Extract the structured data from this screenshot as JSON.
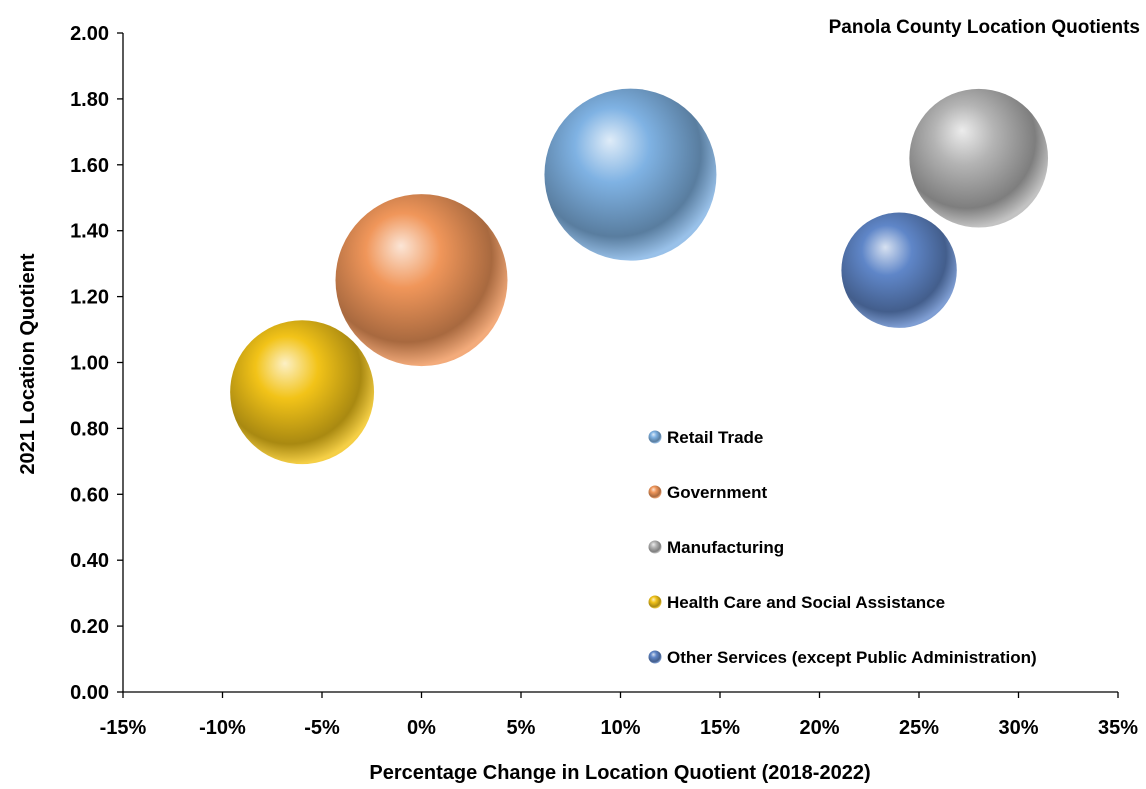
{
  "chart_data": {
    "type": "bubble",
    "title": "Panola County Location Quotients",
    "xlabel": "Percentage Change in Location Quotient (2018-2022)",
    "ylabel": "2021 Location Quotient",
    "xlim": [
      -15,
      35
    ],
    "ylim": [
      0,
      2
    ],
    "x_ticks": [
      "-15%",
      "-10%",
      "-5%",
      "0%",
      "5%",
      "10%",
      "15%",
      "20%",
      "25%",
      "30%",
      "35%"
    ],
    "y_ticks": [
      "0.00",
      "0.20",
      "0.40",
      "0.60",
      "0.80",
      "1.00",
      "1.20",
      "1.40",
      "1.60",
      "1.80",
      "2.00"
    ],
    "legend_position": "right-bottom inside plot",
    "series": [
      {
        "name": "Retail Trade",
        "x": 10.5,
        "y": 1.57,
        "size": 1.0,
        "color": "#7fb2e3"
      },
      {
        "name": "Government",
        "x": 0.0,
        "y": 1.25,
        "size": 1.0,
        "color": "#f0965a"
      },
      {
        "name": "Manufacturing",
        "x": 28.0,
        "y": 1.62,
        "size": 0.65,
        "color": "#b4b4b4"
      },
      {
        "name": "Health Care and Social Assistance",
        "x": -6.0,
        "y": 0.91,
        "size": 0.7,
        "color": "#f2c318"
      },
      {
        "name": "Other Services (except Public Administration)",
        "x": 24.0,
        "y": 1.28,
        "size": 0.45,
        "color": "#5f86c8"
      }
    ]
  }
}
